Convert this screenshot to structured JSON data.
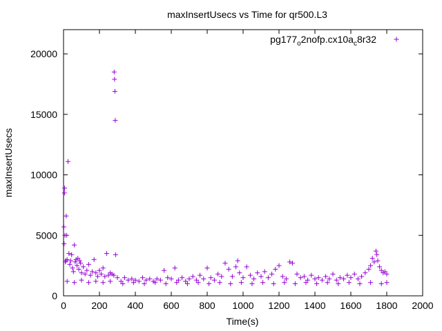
{
  "chart_data": {
    "type": "scatter",
    "title": "maxInsertUsecs vs Time for qr500.L3",
    "xlabel": "Time(s)",
    "ylabel": "maxInsertUsecs",
    "xlim": [
      0,
      2000
    ],
    "ylim": [
      0,
      22000
    ],
    "x_ticks": [
      "0",
      "200",
      "400",
      "600",
      "800",
      "1000",
      "1200",
      "1400",
      "1600",
      "1800",
      "2000"
    ],
    "y_ticks": [
      "0",
      "5000",
      "10000",
      "15000",
      "20000"
    ],
    "grid": false,
    "legend_position": "top-right",
    "marker": "plus",
    "color": "#9400d3",
    "series": [
      {
        "name_main": "pg177",
        "name_sub1": "o",
        "name_mid": "2nofp.cx10a",
        "name_sub2": "c",
        "name_tail": "8r32",
        "points": [
          [
            2,
            5700
          ],
          [
            3,
            4300
          ],
          [
            5,
            8500
          ],
          [
            6,
            8900
          ],
          [
            8,
            5000
          ],
          [
            10,
            2800
          ],
          [
            12,
            2900
          ],
          [
            15,
            6600
          ],
          [
            18,
            5000
          ],
          [
            20,
            3000
          ],
          [
            25,
            11100
          ],
          [
            30,
            3500
          ],
          [
            35,
            2600
          ],
          [
            40,
            2900
          ],
          [
            45,
            3400
          ],
          [
            50,
            2300
          ],
          [
            55,
            2000
          ],
          [
            60,
            4200
          ],
          [
            65,
            2800
          ],
          [
            70,
            3000
          ],
          [
            75,
            2500
          ],
          [
            80,
            3100
          ],
          [
            85,
            2200
          ],
          [
            90,
            2900
          ],
          [
            95,
            2700
          ],
          [
            100,
            1900
          ],
          [
            110,
            2400
          ],
          [
            120,
            1800
          ],
          [
            130,
            2100
          ],
          [
            140,
            2600
          ],
          [
            150,
            1700
          ],
          [
            160,
            2000
          ],
          [
            170,
            3000
          ],
          [
            180,
            1900
          ],
          [
            190,
            1600
          ],
          [
            200,
            2100
          ],
          [
            210,
            1800
          ],
          [
            220,
            2300
          ],
          [
            230,
            1600
          ],
          [
            240,
            3500
          ],
          [
            250,
            1700
          ],
          [
            260,
            1900
          ],
          [
            270,
            1800
          ],
          [
            280,
            1700
          ],
          [
            282,
            18500
          ],
          [
            284,
            17900
          ],
          [
            286,
            16900
          ],
          [
            288,
            14500
          ],
          [
            290,
            3400
          ],
          [
            300,
            1500
          ],
          [
            320,
            1200
          ],
          [
            340,
            1500
          ],
          [
            360,
            1300
          ],
          [
            380,
            1400
          ],
          [
            400,
            1300
          ],
          [
            420,
            1200
          ],
          [
            440,
            1500
          ],
          [
            460,
            1300
          ],
          [
            480,
            1400
          ],
          [
            500,
            1200
          ],
          [
            520,
            1400
          ],
          [
            540,
            1300
          ],
          [
            560,
            2100
          ],
          [
            580,
            1500
          ],
          [
            600,
            1400
          ],
          [
            620,
            2300
          ],
          [
            640,
            1300
          ],
          [
            660,
            1500
          ],
          [
            680,
            1200
          ],
          [
            700,
            1400
          ],
          [
            720,
            1600
          ],
          [
            740,
            1300
          ],
          [
            760,
            1700
          ],
          [
            780,
            1400
          ],
          [
            800,
            2300
          ],
          [
            820,
            1500
          ],
          [
            840,
            1300
          ],
          [
            860,
            1800
          ],
          [
            880,
            1600
          ],
          [
            900,
            2700
          ],
          [
            920,
            2200
          ],
          [
            940,
            1600
          ],
          [
            960,
            2400
          ],
          [
            970,
            2900
          ],
          [
            980,
            1900
          ],
          [
            1000,
            1500
          ],
          [
            1020,
            2400
          ],
          [
            1040,
            1700
          ],
          [
            1060,
            1400
          ],
          [
            1080,
            1900
          ],
          [
            1100,
            1600
          ],
          [
            1120,
            2000
          ],
          [
            1140,
            1500
          ],
          [
            1160,
            1800
          ],
          [
            1180,
            2200
          ],
          [
            1200,
            2500
          ],
          [
            1220,
            1600
          ],
          [
            1240,
            1400
          ],
          [
            1260,
            2800
          ],
          [
            1275,
            2700
          ],
          [
            1300,
            1800
          ],
          [
            1320,
            1500
          ],
          [
            1340,
            1600
          ],
          [
            1360,
            1300
          ],
          [
            1380,
            1700
          ],
          [
            1400,
            1400
          ],
          [
            1420,
            1500
          ],
          [
            1440,
            1300
          ],
          [
            1460,
            1600
          ],
          [
            1480,
            1400
          ],
          [
            1500,
            1800
          ],
          [
            1520,
            1300
          ],
          [
            1540,
            1500
          ],
          [
            1560,
            1400
          ],
          [
            1580,
            1700
          ],
          [
            1600,
            1500
          ],
          [
            1620,
            1800
          ],
          [
            1640,
            1400
          ],
          [
            1660,
            1600
          ],
          [
            1680,
            1900
          ],
          [
            1700,
            2200
          ],
          [
            1710,
            2500
          ],
          [
            1720,
            3100
          ],
          [
            1730,
            2800
          ],
          [
            1740,
            3700
          ],
          [
            1745,
            3400
          ],
          [
            1750,
            2900
          ],
          [
            1760,
            2400
          ],
          [
            1770,
            2100
          ],
          [
            1780,
            1900
          ],
          [
            1790,
            2000
          ],
          [
            1800,
            1800
          ],
          [
            20,
            1200
          ],
          [
            60,
            1100
          ],
          [
            100,
            1300
          ],
          [
            140,
            1100
          ],
          [
            180,
            1200
          ],
          [
            220,
            1100
          ],
          [
            260,
            1200
          ],
          [
            330,
            1000
          ],
          [
            390,
            1100
          ],
          [
            450,
            1000
          ],
          [
            510,
            1100
          ],
          [
            570,
            1000
          ],
          [
            630,
            1100
          ],
          [
            690,
            1000
          ],
          [
            750,
            1100
          ],
          [
            810,
            1000
          ],
          [
            870,
            1100
          ],
          [
            930,
            1000
          ],
          [
            990,
            1100
          ],
          [
            1050,
            1000
          ],
          [
            1110,
            1100
          ],
          [
            1170,
            1000
          ],
          [
            1230,
            1100
          ],
          [
            1290,
            1000
          ],
          [
            1350,
            1100
          ],
          [
            1410,
            1000
          ],
          [
            1470,
            1100
          ],
          [
            1530,
            1000
          ],
          [
            1590,
            1100
          ],
          [
            1650,
            1000
          ],
          [
            1710,
            1100
          ],
          [
            1770,
            1000
          ],
          [
            1800,
            1100
          ]
        ]
      }
    ]
  }
}
